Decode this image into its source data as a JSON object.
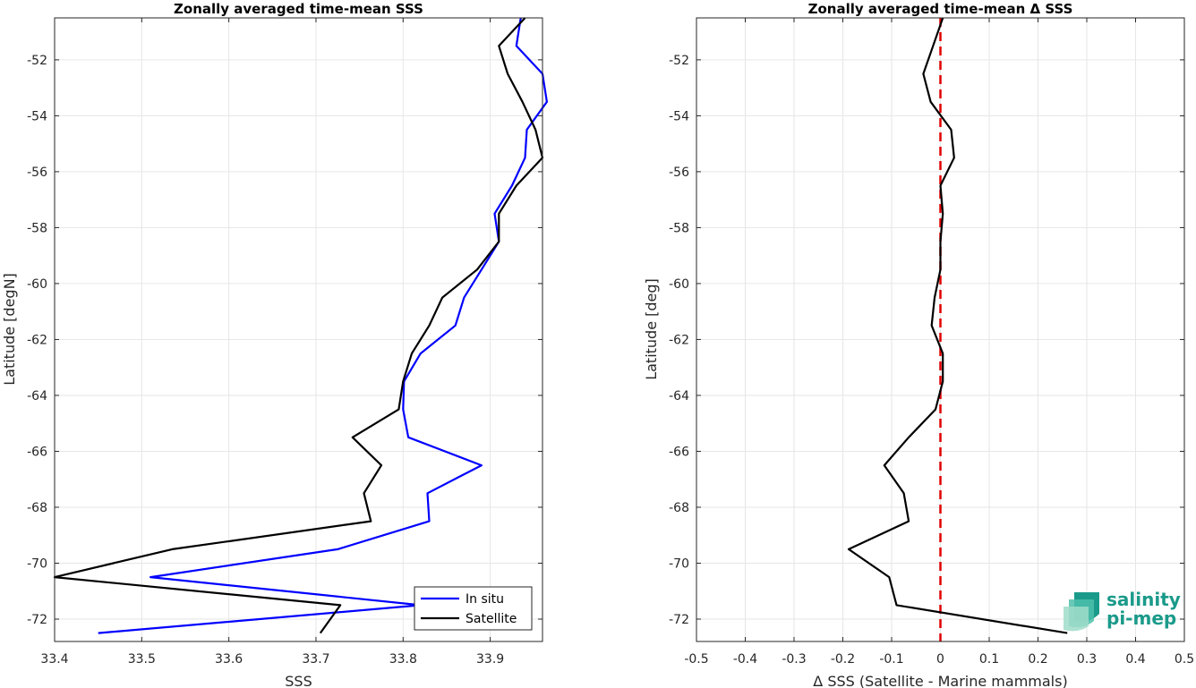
{
  "chart_data": [
    {
      "type": "line",
      "title": "Zonally averaged time-mean SSS",
      "xlabel": "SSS",
      "ylabel": "Latitude [degN]",
      "xlim": [
        33.4,
        33.96
      ],
      "ylim": [
        -72.8,
        -50.5
      ],
      "xticks": [
        33.4,
        33.5,
        33.6,
        33.7,
        33.8,
        33.9
      ],
      "yticks": [
        -52,
        -54,
        -56,
        -58,
        -60,
        -62,
        -64,
        -66,
        -68,
        -70,
        -72
      ],
      "grid": true,
      "legend_position": "bottom-right",
      "series": [
        {
          "name": "In situ",
          "color": "#0000ff",
          "x": [
            33.935,
            33.93,
            33.96,
            33.965,
            33.942,
            33.94,
            33.925,
            33.905,
            33.91,
            33.89,
            33.87,
            33.86,
            33.82,
            33.801,
            33.8,
            33.806,
            33.89,
            33.828,
            33.83,
            33.725,
            33.51,
            33.82,
            33.45
          ],
          "y": [
            -50.5,
            -51.5,
            -52.5,
            -53.5,
            -54.5,
            -55.5,
            -56.5,
            -57.5,
            -58.5,
            -59.5,
            -60.5,
            -61.5,
            -62.5,
            -63.5,
            -64.5,
            -65.5,
            -66.5,
            -67.5,
            -68.5,
            -69.5,
            -70.5,
            -71.5,
            -72.5
          ]
        },
        {
          "name": "Satellite",
          "color": "#000000",
          "x": [
            33.94,
            33.91,
            33.92,
            33.937,
            33.952,
            33.96,
            33.93,
            33.91,
            33.91,
            33.885,
            33.845,
            33.83,
            33.81,
            33.8,
            33.795,
            33.742,
            33.775,
            33.755,
            33.763,
            33.535,
            33.4,
            33.728,
            33.705
          ],
          "y": [
            -50.5,
            -51.5,
            -52.5,
            -53.5,
            -54.5,
            -55.5,
            -56.5,
            -57.5,
            -58.5,
            -59.5,
            -60.5,
            -61.5,
            -62.5,
            -63.5,
            -64.5,
            -65.5,
            -66.5,
            -67.5,
            -68.5,
            -69.5,
            -70.5,
            -71.5,
            -72.5
          ]
        }
      ]
    },
    {
      "type": "line",
      "title": "Zonally averaged time-mean Δ SSS",
      "xlabel": "Δ SSS (Satellite - Marine mammals)",
      "ylabel": "Latitude [deg]",
      "xlim": [
        -0.5,
        0.5
      ],
      "ylim": [
        -72.8,
        -50.5
      ],
      "xticks": [
        -0.5,
        -0.4,
        -0.3,
        -0.2,
        -0.1,
        0,
        0.1,
        0.2,
        0.3,
        0.4,
        0.5
      ],
      "xtick_labels": [
        "-0.5",
        "-0.4",
        "-0.3",
        "-0.2",
        "-0.1",
        "0",
        "0.1",
        "0.2",
        "0.3",
        "0.4",
        "0.5"
      ],
      "yticks": [
        -52,
        -54,
        -56,
        -58,
        -60,
        -62,
        -64,
        -66,
        -68,
        -70,
        -72
      ],
      "grid": true,
      "zero_line": {
        "x": 0,
        "color": "#e00000",
        "style": "dashed"
      },
      "series": [
        {
          "color": "#000000",
          "x": [
            0.005,
            -0.015,
            -0.035,
            -0.02,
            0.022,
            0.028,
            0.0,
            0.005,
            0.0,
            0.0,
            -0.012,
            -0.018,
            0.005,
            0.005,
            -0.01,
            -0.065,
            -0.115,
            -0.075,
            -0.065,
            -0.188,
            -0.105,
            -0.09,
            0.26
          ],
          "y": [
            -50.5,
            -51.5,
            -52.5,
            -53.5,
            -54.5,
            -55.5,
            -56.5,
            -57.5,
            -58.5,
            -59.5,
            -60.5,
            -61.5,
            -62.5,
            -63.5,
            -64.5,
            -65.5,
            -66.5,
            -67.5,
            -68.5,
            -69.5,
            -70.5,
            -71.5,
            -72.5
          ]
        }
      ]
    }
  ],
  "logo": {
    "line1": "salinity",
    "line2": "pi-mep",
    "color": "#1a9a8a"
  }
}
